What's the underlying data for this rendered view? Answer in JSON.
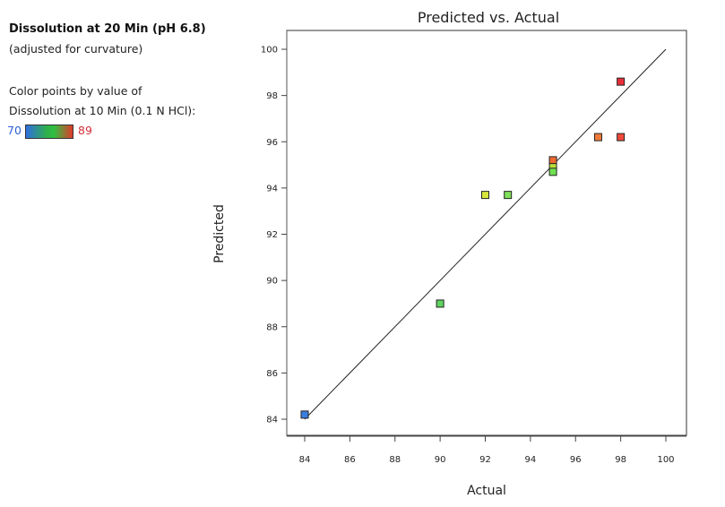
{
  "legend": {
    "response_title": "Dissolution at 20 Min (pH 6.8)",
    "response_note": "(adjusted for curvature)",
    "color_by_line1": "Color points by value of",
    "color_by_line2": "Dissolution at 10 Min (0.1 N HCl):",
    "color_min": "70",
    "color_max": "89",
    "gradient_colors": [
      "#2f6fe0",
      "#2fb04a",
      "#e03a2a"
    ]
  },
  "chart_data": {
    "type": "scatter",
    "title": "Predicted vs. Actual",
    "xlabel": "Actual",
    "ylabel": "Predicted",
    "xlim": [
      84,
      100
    ],
    "ylim": [
      84,
      100
    ],
    "xticks": [
      "84",
      "86",
      "88",
      "90",
      "92",
      "94",
      "96",
      "98",
      "100"
    ],
    "yticks": [
      "84",
      "86",
      "88",
      "90",
      "92",
      "94",
      "96",
      "98",
      "100"
    ],
    "reference_line": {
      "from": [
        84,
        84
      ],
      "to": [
        100,
        100
      ]
    },
    "points": [
      {
        "x": 84,
        "y": 84.2,
        "color": "#3a7fe0"
      },
      {
        "x": 90,
        "y": 89.0,
        "color": "#5fd45f"
      },
      {
        "x": 92,
        "y": 93.7,
        "color": "#d8e63a"
      },
      {
        "x": 93,
        "y": 93.7,
        "color": "#7fe05a"
      },
      {
        "x": 95,
        "y": 95.2,
        "color": "#ef6a2f"
      },
      {
        "x": 95,
        "y": 94.9,
        "color": "#b8e03a"
      },
      {
        "x": 95,
        "y": 94.7,
        "color": "#6fe04f"
      },
      {
        "x": 97,
        "y": 96.2,
        "color": "#f07a3a"
      },
      {
        "x": 98,
        "y": 96.2,
        "color": "#ef4a3a"
      },
      {
        "x": 98,
        "y": 98.6,
        "color": "#e8303a"
      }
    ]
  }
}
